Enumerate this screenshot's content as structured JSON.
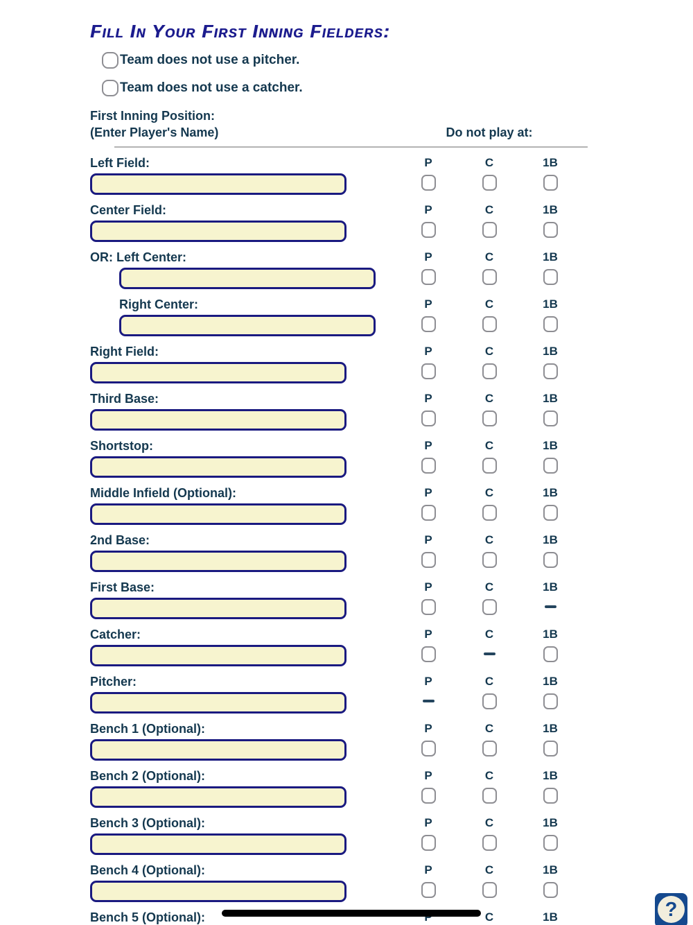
{
  "page": {
    "title": "Fill In Your First Inning Fielders:"
  },
  "options": [
    {
      "label": "Team does not use a pitcher.",
      "checked": false
    },
    {
      "label": "Team does not use a catcher.",
      "checked": false
    }
  ],
  "table_header": {
    "position_line1": "First Inning Position:",
    "position_line2": "(Enter Player's Name)",
    "do_not_play": "Do not play at:"
  },
  "columns": [
    "P",
    "C",
    "1B"
  ],
  "positions": [
    {
      "label": "Left Field:",
      "cells": [
        "checkbox",
        "checkbox",
        "checkbox"
      ]
    },
    {
      "label": "Center Field:",
      "cells": [
        "checkbox",
        "checkbox",
        "checkbox"
      ]
    },
    {
      "label": "OR: Left Center:",
      "indent_input": true,
      "cells": [
        "checkbox",
        "checkbox",
        "checkbox"
      ]
    },
    {
      "label": "Right Center:",
      "indent_label": true,
      "indent_input": true,
      "cells": [
        "checkbox",
        "checkbox",
        "checkbox"
      ]
    },
    {
      "label": "Right Field:",
      "cells": [
        "checkbox",
        "checkbox",
        "checkbox"
      ]
    },
    {
      "label": "Third Base:",
      "cells": [
        "checkbox",
        "checkbox",
        "checkbox"
      ]
    },
    {
      "label": "Shortstop:",
      "cells": [
        "checkbox",
        "checkbox",
        "checkbox"
      ]
    },
    {
      "label": "Middle Infield (Optional):",
      "cells": [
        "checkbox",
        "checkbox",
        "checkbox"
      ]
    },
    {
      "label": "2nd Base:",
      "cells": [
        "checkbox",
        "checkbox",
        "checkbox"
      ]
    },
    {
      "label": "First Base:",
      "cells": [
        "checkbox",
        "checkbox",
        "dash"
      ]
    },
    {
      "label": "Catcher:",
      "cells": [
        "checkbox",
        "dash",
        "checkbox"
      ]
    },
    {
      "label": "Pitcher:",
      "cells": [
        "dash",
        "checkbox",
        "checkbox"
      ]
    },
    {
      "label": "Bench 1 (Optional):",
      "cells": [
        "checkbox",
        "checkbox",
        "checkbox"
      ]
    },
    {
      "label": "Bench 2 (Optional):",
      "cells": [
        "checkbox",
        "checkbox",
        "checkbox"
      ]
    },
    {
      "label": "Bench 3 (Optional):",
      "cells": [
        "checkbox",
        "checkbox",
        "checkbox"
      ]
    },
    {
      "label": "Bench 4 (Optional):",
      "cells": [
        "checkbox",
        "checkbox",
        "checkbox"
      ]
    },
    {
      "label": "Bench 5 (Optional):",
      "cells": [
        "checkbox",
        "checkbox",
        "checkbox"
      ]
    }
  ],
  "annotation": {
    "type": "drawn-black-line"
  },
  "help_button": {
    "glyph": "?"
  },
  "colors": {
    "title": "#1c1c8e",
    "label": "#14384f",
    "input_bg": "#f7f4cf",
    "input_border": "#1a1a80",
    "checkbox_border": "#8e8e93",
    "dash": "#24455e",
    "divider": "#b3b3b3",
    "annotation_line": "#000000",
    "help_bg": "#15498e",
    "help_circle": "#f2eedd"
  }
}
